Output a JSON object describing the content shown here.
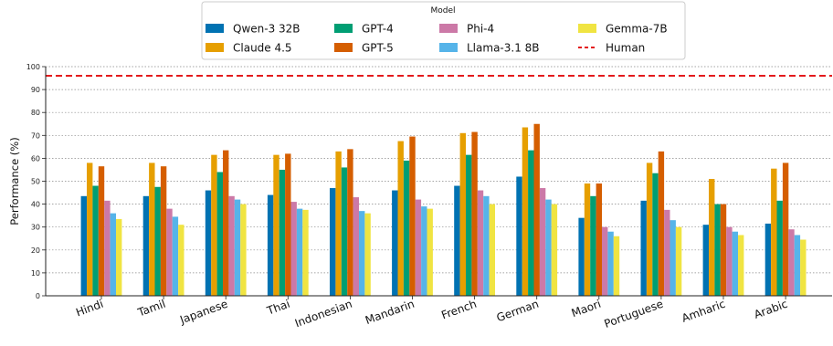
{
  "chart_data": {
    "type": "bar",
    "ylabel": "Performance (%)",
    "xlabel": "",
    "ylim": [
      0,
      100
    ],
    "yticks": [
      0,
      10,
      20,
      30,
      40,
      50,
      60,
      70,
      80,
      90,
      100
    ],
    "grid": "horizontal-dotted",
    "legend_title": "Model",
    "legend_position": "top-center",
    "categories": [
      "Hindi",
      "Tamil",
      "Japanese",
      "Thai",
      "Indonesian",
      "Mandarin",
      "French",
      "German",
      "Maori",
      "Portuguese",
      "Amharic",
      "Arabic"
    ],
    "series": [
      {
        "name": "Qwen-3 32B",
        "color": "#0072b2",
        "values": [
          43.5,
          43.5,
          46.0,
          44.0,
          47.0,
          46.0,
          48.0,
          52.0,
          34.0,
          41.5,
          31.0,
          31.5
        ]
      },
      {
        "name": "Claude 4.5",
        "color": "#e69f00",
        "values": [
          58.0,
          58.0,
          61.5,
          61.5,
          63.0,
          67.5,
          71.0,
          73.5,
          49.0,
          58.0,
          51.0,
          55.5
        ]
      },
      {
        "name": "GPT-4",
        "color": "#009e73",
        "values": [
          48.0,
          47.5,
          54.0,
          55.0,
          56.0,
          59.0,
          61.5,
          63.5,
          43.5,
          53.5,
          40.0,
          41.5
        ]
      },
      {
        "name": "GPT-5",
        "color": "#d55e00",
        "values": [
          56.5,
          56.5,
          63.5,
          62.0,
          64.0,
          69.5,
          71.5,
          75.0,
          49.0,
          63.0,
          40.0,
          58.0
        ]
      },
      {
        "name": "Phi-4",
        "color": "#cc79a7",
        "values": [
          41.5,
          38.0,
          43.5,
          41.0,
          43.0,
          42.0,
          46.0,
          47.0,
          30.0,
          37.5,
          30.0,
          29.0
        ]
      },
      {
        "name": "Llama-3.1 8B",
        "color": "#56b4e9",
        "values": [
          36.0,
          34.5,
          42.0,
          38.0,
          37.0,
          39.0,
          43.5,
          42.0,
          28.0,
          33.0,
          28.0,
          26.5
        ]
      },
      {
        "name": "Gemma-7B",
        "color": "#f0e442",
        "values": [
          33.5,
          31.0,
          40.0,
          37.5,
          36.0,
          38.0,
          40.0,
          40.0,
          26.0,
          30.0,
          26.5,
          24.5
        ]
      }
    ],
    "reference_line": {
      "name": "Human",
      "value": 96,
      "color": "#e31a1c",
      "style": "dashed"
    }
  }
}
